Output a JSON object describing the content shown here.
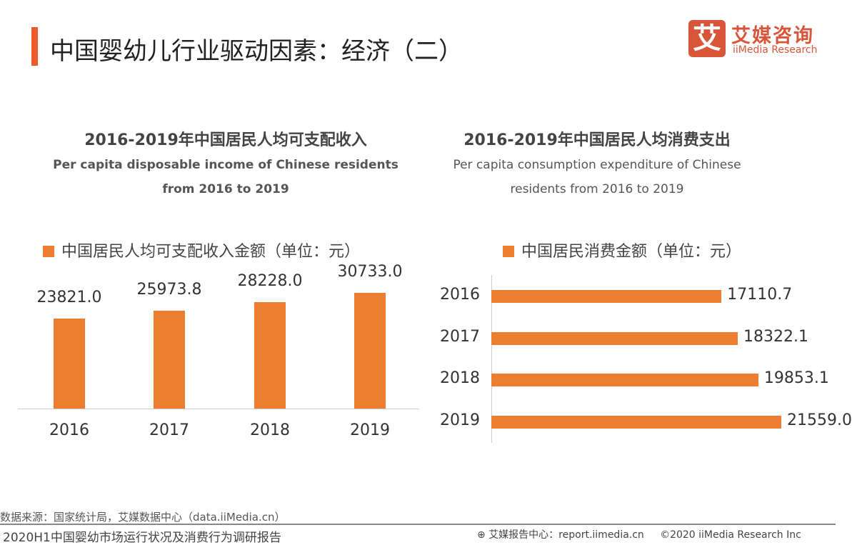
{
  "header": {
    "title": "中国婴幼儿行业驱动因素：经济（二）",
    "accent_color": "#ED5A2B"
  },
  "logo": {
    "glyph": "艾",
    "cn": "艾媒咨询",
    "en": "iiMedia Research",
    "color": "#D9553A"
  },
  "chart_data": [
    {
      "type": "bar",
      "orientation": "vertical",
      "title": "2016-2019年中国居民人均可支配收入",
      "subtitle_line1": "Per capita disposable income of Chinese residents",
      "subtitle_line2": "from 2016 to 2019",
      "legend": "中国居民人均可支配收入金额（单位：元）",
      "legend_placement": "top",
      "categories": [
        "2016",
        "2017",
        "2018",
        "2019"
      ],
      "series": [
        {
          "name": "中国居民人均可支配收入金额（单位：元）",
          "values": [
            23821.0,
            25973.8,
            28228.0,
            30733.0
          ],
          "labels": [
            "23821.0",
            "25973.8",
            "28228.0",
            "30733.0"
          ],
          "color": "#ED7D31"
        }
      ],
      "grid": false
    },
    {
      "type": "bar",
      "orientation": "horizontal",
      "title": "2016-2019年中国居民人均消费支出",
      "subtitle_line1": "Per capita consumption expenditure of Chinese",
      "subtitle_line2": "residents from 2016 to 2019",
      "legend": "中国居民消费金额（单位：元）",
      "legend_placement": "top",
      "categories": [
        "2016",
        "2017",
        "2018",
        "2019"
      ],
      "series": [
        {
          "name": "中国居民消费金额（单位：元）",
          "values": [
            17110.7,
            18322.1,
            19853.1,
            21559.0
          ],
          "labels": [
            "17110.7",
            "18322.1",
            "19853.1",
            "21559.0"
          ],
          "color": "#ED7D31"
        }
      ],
      "grid": false
    }
  ],
  "footer": {
    "source": "数据来源：国家统计局，艾媒数据中心（data.iiMedia.cn）",
    "report": "2020H1中国婴幼市场运行状况及消费行为调研报告",
    "center": "艾媒报告中心：report.iimedia.cn",
    "copyright": "©2020  iiMedia Research  Inc"
  }
}
